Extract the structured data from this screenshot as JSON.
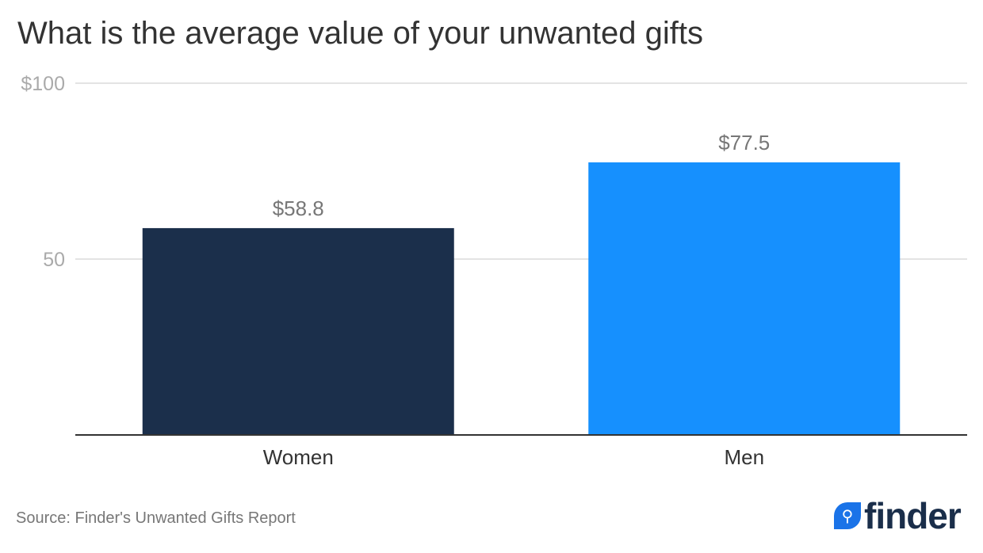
{
  "chart_data": {
    "type": "bar",
    "title": "What is the average value of your unwanted gifts",
    "categories": [
      "Women",
      "Men"
    ],
    "values": [
      58.8,
      77.5
    ],
    "data_labels": [
      "$58.8",
      "$77.5"
    ],
    "colors": [
      "#1b2f4b",
      "#1690fe"
    ],
    "ylim": [
      0,
      100
    ],
    "yticks": [
      50,
      100
    ],
    "ytick_labels": [
      "50",
      "$100"
    ],
    "grid": true,
    "xlabel": "",
    "ylabel": ""
  },
  "source": "Source: Finder's Unwanted Gifts Report",
  "logo": {
    "text": "finder"
  }
}
